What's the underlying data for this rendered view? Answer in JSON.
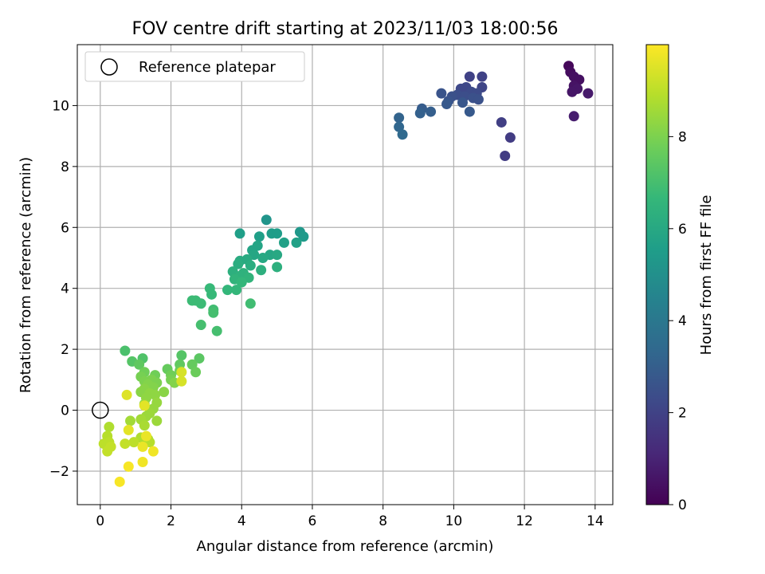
{
  "chart_data": {
    "type": "scatter",
    "title": "FOV centre drift starting at 2023/11/03 18:00:56",
    "xlabel": "Angular distance from reference (arcmin)",
    "ylabel": "Rotation from reference (arcmin)",
    "xlim": [
      -0.65,
      14.5
    ],
    "ylim": [
      -3.1,
      12.0
    ],
    "xticks": [
      0,
      2,
      4,
      6,
      8,
      10,
      12,
      14
    ],
    "yticks": [
      -2,
      0,
      2,
      4,
      6,
      8,
      10
    ],
    "xtick_labels": [
      "0",
      "2",
      "4",
      "6",
      "8",
      "10",
      "12",
      "14"
    ],
    "ytick_labels": [
      "−2",
      "0",
      "2",
      "4",
      "6",
      "8",
      "10"
    ],
    "grid": true,
    "legend": {
      "label": "Reference platepar",
      "placement": "top-left"
    },
    "reference_point": {
      "x": 0,
      "y": 0
    },
    "colorbar": {
      "label": "Hours from first FF file",
      "colormap": "viridis",
      "range": [
        0,
        10
      ],
      "ticks": [
        0,
        2,
        4,
        6,
        8
      ],
      "tick_labels": [
        "0",
        "2",
        "4",
        "6",
        "8"
      ],
      "colors": [
        "#440154",
        "#482878",
        "#3e4989",
        "#31688e",
        "#26828e",
        "#1f9e89",
        "#35b779",
        "#6ece58",
        "#b5de2b",
        "#fde725"
      ]
    },
    "points": [
      {
        "x": 13.25,
        "y": 11.3,
        "h": 0.2
      },
      {
        "x": 13.3,
        "y": 11.1,
        "h": 0.3
      },
      {
        "x": 13.4,
        "y": 10.95,
        "h": 0.4
      },
      {
        "x": 13.55,
        "y": 10.85,
        "h": 0.4
      },
      {
        "x": 13.4,
        "y": 10.65,
        "h": 0.5
      },
      {
        "x": 13.5,
        "y": 10.55,
        "h": 0.6
      },
      {
        "x": 13.35,
        "y": 10.45,
        "h": 0.6
      },
      {
        "x": 13.8,
        "y": 10.4,
        "h": 0.7
      },
      {
        "x": 13.4,
        "y": 9.65,
        "h": 0.8
      },
      {
        "x": 10.8,
        "y": 10.95,
        "h": 2.0
      },
      {
        "x": 10.45,
        "y": 10.95,
        "h": 2.0
      },
      {
        "x": 11.6,
        "y": 8.95,
        "h": 1.8
      },
      {
        "x": 11.45,
        "y": 8.35,
        "h": 1.8
      },
      {
        "x": 11.35,
        "y": 9.45,
        "h": 1.9
      },
      {
        "x": 10.8,
        "y": 10.6,
        "h": 2.1
      },
      {
        "x": 10.35,
        "y": 10.6,
        "h": 2.2
      },
      {
        "x": 10.2,
        "y": 10.55,
        "h": 2.2
      },
      {
        "x": 10.5,
        "y": 10.45,
        "h": 2.3
      },
      {
        "x": 10.65,
        "y": 10.4,
        "h": 2.3
      },
      {
        "x": 10.1,
        "y": 10.35,
        "h": 2.4
      },
      {
        "x": 10.3,
        "y": 10.3,
        "h": 2.4
      },
      {
        "x": 10.55,
        "y": 10.25,
        "h": 2.5
      },
      {
        "x": 10.7,
        "y": 10.2,
        "h": 2.5
      },
      {
        "x": 9.95,
        "y": 10.3,
        "h": 2.5
      },
      {
        "x": 9.65,
        "y": 10.4,
        "h": 2.6
      },
      {
        "x": 9.85,
        "y": 10.15,
        "h": 2.6
      },
      {
        "x": 10.25,
        "y": 10.1,
        "h": 2.7
      },
      {
        "x": 9.8,
        "y": 10.05,
        "h": 2.8
      },
      {
        "x": 10.45,
        "y": 9.8,
        "h": 2.8
      },
      {
        "x": 9.1,
        "y": 9.9,
        "h": 2.9
      },
      {
        "x": 9.35,
        "y": 9.8,
        "h": 3.0
      },
      {
        "x": 9.05,
        "y": 9.75,
        "h": 3.1
      },
      {
        "x": 8.45,
        "y": 9.6,
        "h": 3.2
      },
      {
        "x": 8.45,
        "y": 9.3,
        "h": 3.3
      },
      {
        "x": 8.55,
        "y": 9.05,
        "h": 3.4
      },
      {
        "x": 4.7,
        "y": 6.25,
        "h": 5.2
      },
      {
        "x": 5.65,
        "y": 5.85,
        "h": 5.3
      },
      {
        "x": 5.75,
        "y": 5.7,
        "h": 5.4
      },
      {
        "x": 4.85,
        "y": 5.8,
        "h": 5.5
      },
      {
        "x": 5.0,
        "y": 5.8,
        "h": 5.5
      },
      {
        "x": 3.95,
        "y": 5.8,
        "h": 5.6
      },
      {
        "x": 4.5,
        "y": 5.7,
        "h": 5.6
      },
      {
        "x": 5.2,
        "y": 5.5,
        "h": 5.7
      },
      {
        "x": 5.55,
        "y": 5.5,
        "h": 5.7
      },
      {
        "x": 4.45,
        "y": 5.4,
        "h": 5.8
      },
      {
        "x": 4.3,
        "y": 5.25,
        "h": 5.8
      },
      {
        "x": 4.35,
        "y": 5.1,
        "h": 5.9
      },
      {
        "x": 4.8,
        "y": 5.1,
        "h": 5.9
      },
      {
        "x": 5.0,
        "y": 5.1,
        "h": 6.0
      },
      {
        "x": 4.6,
        "y": 5.0,
        "h": 6.0
      },
      {
        "x": 4.15,
        "y": 4.95,
        "h": 6.1
      },
      {
        "x": 3.95,
        "y": 4.9,
        "h": 6.1
      },
      {
        "x": 3.9,
        "y": 4.8,
        "h": 6.2
      },
      {
        "x": 4.25,
        "y": 4.75,
        "h": 6.2
      },
      {
        "x": 5.0,
        "y": 4.7,
        "h": 6.3
      },
      {
        "x": 4.55,
        "y": 4.6,
        "h": 6.3
      },
      {
        "x": 3.75,
        "y": 4.55,
        "h": 6.3
      },
      {
        "x": 4.05,
        "y": 4.5,
        "h": 6.4
      },
      {
        "x": 3.95,
        "y": 4.4,
        "h": 6.4
      },
      {
        "x": 4.2,
        "y": 4.35,
        "h": 6.5
      },
      {
        "x": 3.8,
        "y": 4.3,
        "h": 6.5
      },
      {
        "x": 4.0,
        "y": 4.2,
        "h": 6.6
      },
      {
        "x": 3.6,
        "y": 3.95,
        "h": 6.6
      },
      {
        "x": 3.85,
        "y": 3.95,
        "h": 6.6
      },
      {
        "x": 3.1,
        "y": 4.0,
        "h": 6.7
      },
      {
        "x": 3.15,
        "y": 3.8,
        "h": 6.7
      },
      {
        "x": 2.6,
        "y": 3.6,
        "h": 6.8
      },
      {
        "x": 2.7,
        "y": 3.6,
        "h": 6.8
      },
      {
        "x": 2.85,
        "y": 3.5,
        "h": 6.8
      },
      {
        "x": 4.25,
        "y": 3.5,
        "h": 6.9
      },
      {
        "x": 3.2,
        "y": 3.3,
        "h": 6.9
      },
      {
        "x": 3.2,
        "y": 3.2,
        "h": 7.0
      },
      {
        "x": 2.85,
        "y": 2.8,
        "h": 7.0
      },
      {
        "x": 3.3,
        "y": 2.6,
        "h": 7.0
      },
      {
        "x": 0.7,
        "y": 1.95,
        "h": 7.1
      },
      {
        "x": 1.2,
        "y": 1.7,
        "h": 7.2
      },
      {
        "x": 0.9,
        "y": 1.6,
        "h": 7.3
      },
      {
        "x": 2.3,
        "y": 1.8,
        "h": 7.3
      },
      {
        "x": 2.8,
        "y": 1.7,
        "h": 7.4
      },
      {
        "x": 1.1,
        "y": 1.5,
        "h": 7.5
      },
      {
        "x": 2.25,
        "y": 1.5,
        "h": 7.5
      },
      {
        "x": 2.6,
        "y": 1.5,
        "h": 7.6
      },
      {
        "x": 1.9,
        "y": 1.35,
        "h": 7.6
      },
      {
        "x": 2.25,
        "y": 1.3,
        "h": 7.7
      },
      {
        "x": 2.7,
        "y": 1.25,
        "h": 7.7
      },
      {
        "x": 1.25,
        "y": 1.25,
        "h": 7.8
      },
      {
        "x": 1.55,
        "y": 1.15,
        "h": 7.8
      },
      {
        "x": 2.0,
        "y": 1.15,
        "h": 7.8
      },
      {
        "x": 1.15,
        "y": 1.1,
        "h": 7.9
      },
      {
        "x": 2.0,
        "y": 1.0,
        "h": 7.9
      },
      {
        "x": 1.45,
        "y": 1.0,
        "h": 8.0
      },
      {
        "x": 1.25,
        "y": 0.95,
        "h": 8.0
      },
      {
        "x": 1.6,
        "y": 0.9,
        "h": 8.0
      },
      {
        "x": 2.1,
        "y": 0.9,
        "h": 8.1
      },
      {
        "x": 1.35,
        "y": 0.85,
        "h": 8.1
      },
      {
        "x": 1.5,
        "y": 0.75,
        "h": 8.1
      },
      {
        "x": 1.25,
        "y": 0.7,
        "h": 8.2
      },
      {
        "x": 1.8,
        "y": 0.6,
        "h": 8.2
      },
      {
        "x": 1.15,
        "y": 0.6,
        "h": 8.2
      },
      {
        "x": 1.4,
        "y": 0.55,
        "h": 8.3
      },
      {
        "x": 1.55,
        "y": 0.5,
        "h": 8.3
      },
      {
        "x": 1.3,
        "y": 0.4,
        "h": 8.3
      },
      {
        "x": 1.6,
        "y": 0.25,
        "h": 8.4
      },
      {
        "x": 1.25,
        "y": 0.2,
        "h": 8.4
      },
      {
        "x": 1.5,
        "y": 0.05,
        "h": 8.4
      },
      {
        "x": 1.4,
        "y": -0.1,
        "h": 8.5
      },
      {
        "x": 1.3,
        "y": -0.2,
        "h": 8.5
      },
      {
        "x": 1.6,
        "y": -0.35,
        "h": 8.5
      },
      {
        "x": 1.15,
        "y": -0.3,
        "h": 8.6
      },
      {
        "x": 0.85,
        "y": -0.35,
        "h": 8.6
      },
      {
        "x": 1.25,
        "y": -0.5,
        "h": 8.7
      },
      {
        "x": 0.25,
        "y": -0.55,
        "h": 8.8
      },
      {
        "x": 1.15,
        "y": -0.9,
        "h": 8.8
      },
      {
        "x": 1.35,
        "y": -0.95,
        "h": 8.8
      },
      {
        "x": 0.2,
        "y": -0.85,
        "h": 8.9
      },
      {
        "x": 1.4,
        "y": -1.05,
        "h": 8.9
      },
      {
        "x": 0.95,
        "y": -1.05,
        "h": 9.0
      },
      {
        "x": 0.25,
        "y": -1.05,
        "h": 9.0
      },
      {
        "x": 0.1,
        "y": -1.1,
        "h": 9.0
      },
      {
        "x": 0.7,
        "y": -1.1,
        "h": 9.1
      },
      {
        "x": 0.3,
        "y": -1.2,
        "h": 9.1
      },
      {
        "x": 0.2,
        "y": -1.35,
        "h": 9.1
      },
      {
        "x": 2.3,
        "y": 1.25,
        "h": 9.4
      },
      {
        "x": 2.3,
        "y": 0.95,
        "h": 9.4
      },
      {
        "x": 0.75,
        "y": 0.5,
        "h": 9.5
      },
      {
        "x": 1.25,
        "y": 0.15,
        "h": 9.6
      },
      {
        "x": 0.8,
        "y": -0.65,
        "h": 9.6
      },
      {
        "x": 1.3,
        "y": -0.85,
        "h": 9.7
      },
      {
        "x": 1.2,
        "y": -1.2,
        "h": 9.7
      },
      {
        "x": 1.5,
        "y": -1.35,
        "h": 9.8
      },
      {
        "x": 1.2,
        "y": -1.7,
        "h": 9.8
      },
      {
        "x": 0.8,
        "y": -1.85,
        "h": 9.9
      },
      {
        "x": 0.55,
        "y": -2.35,
        "h": 9.9
      }
    ]
  }
}
